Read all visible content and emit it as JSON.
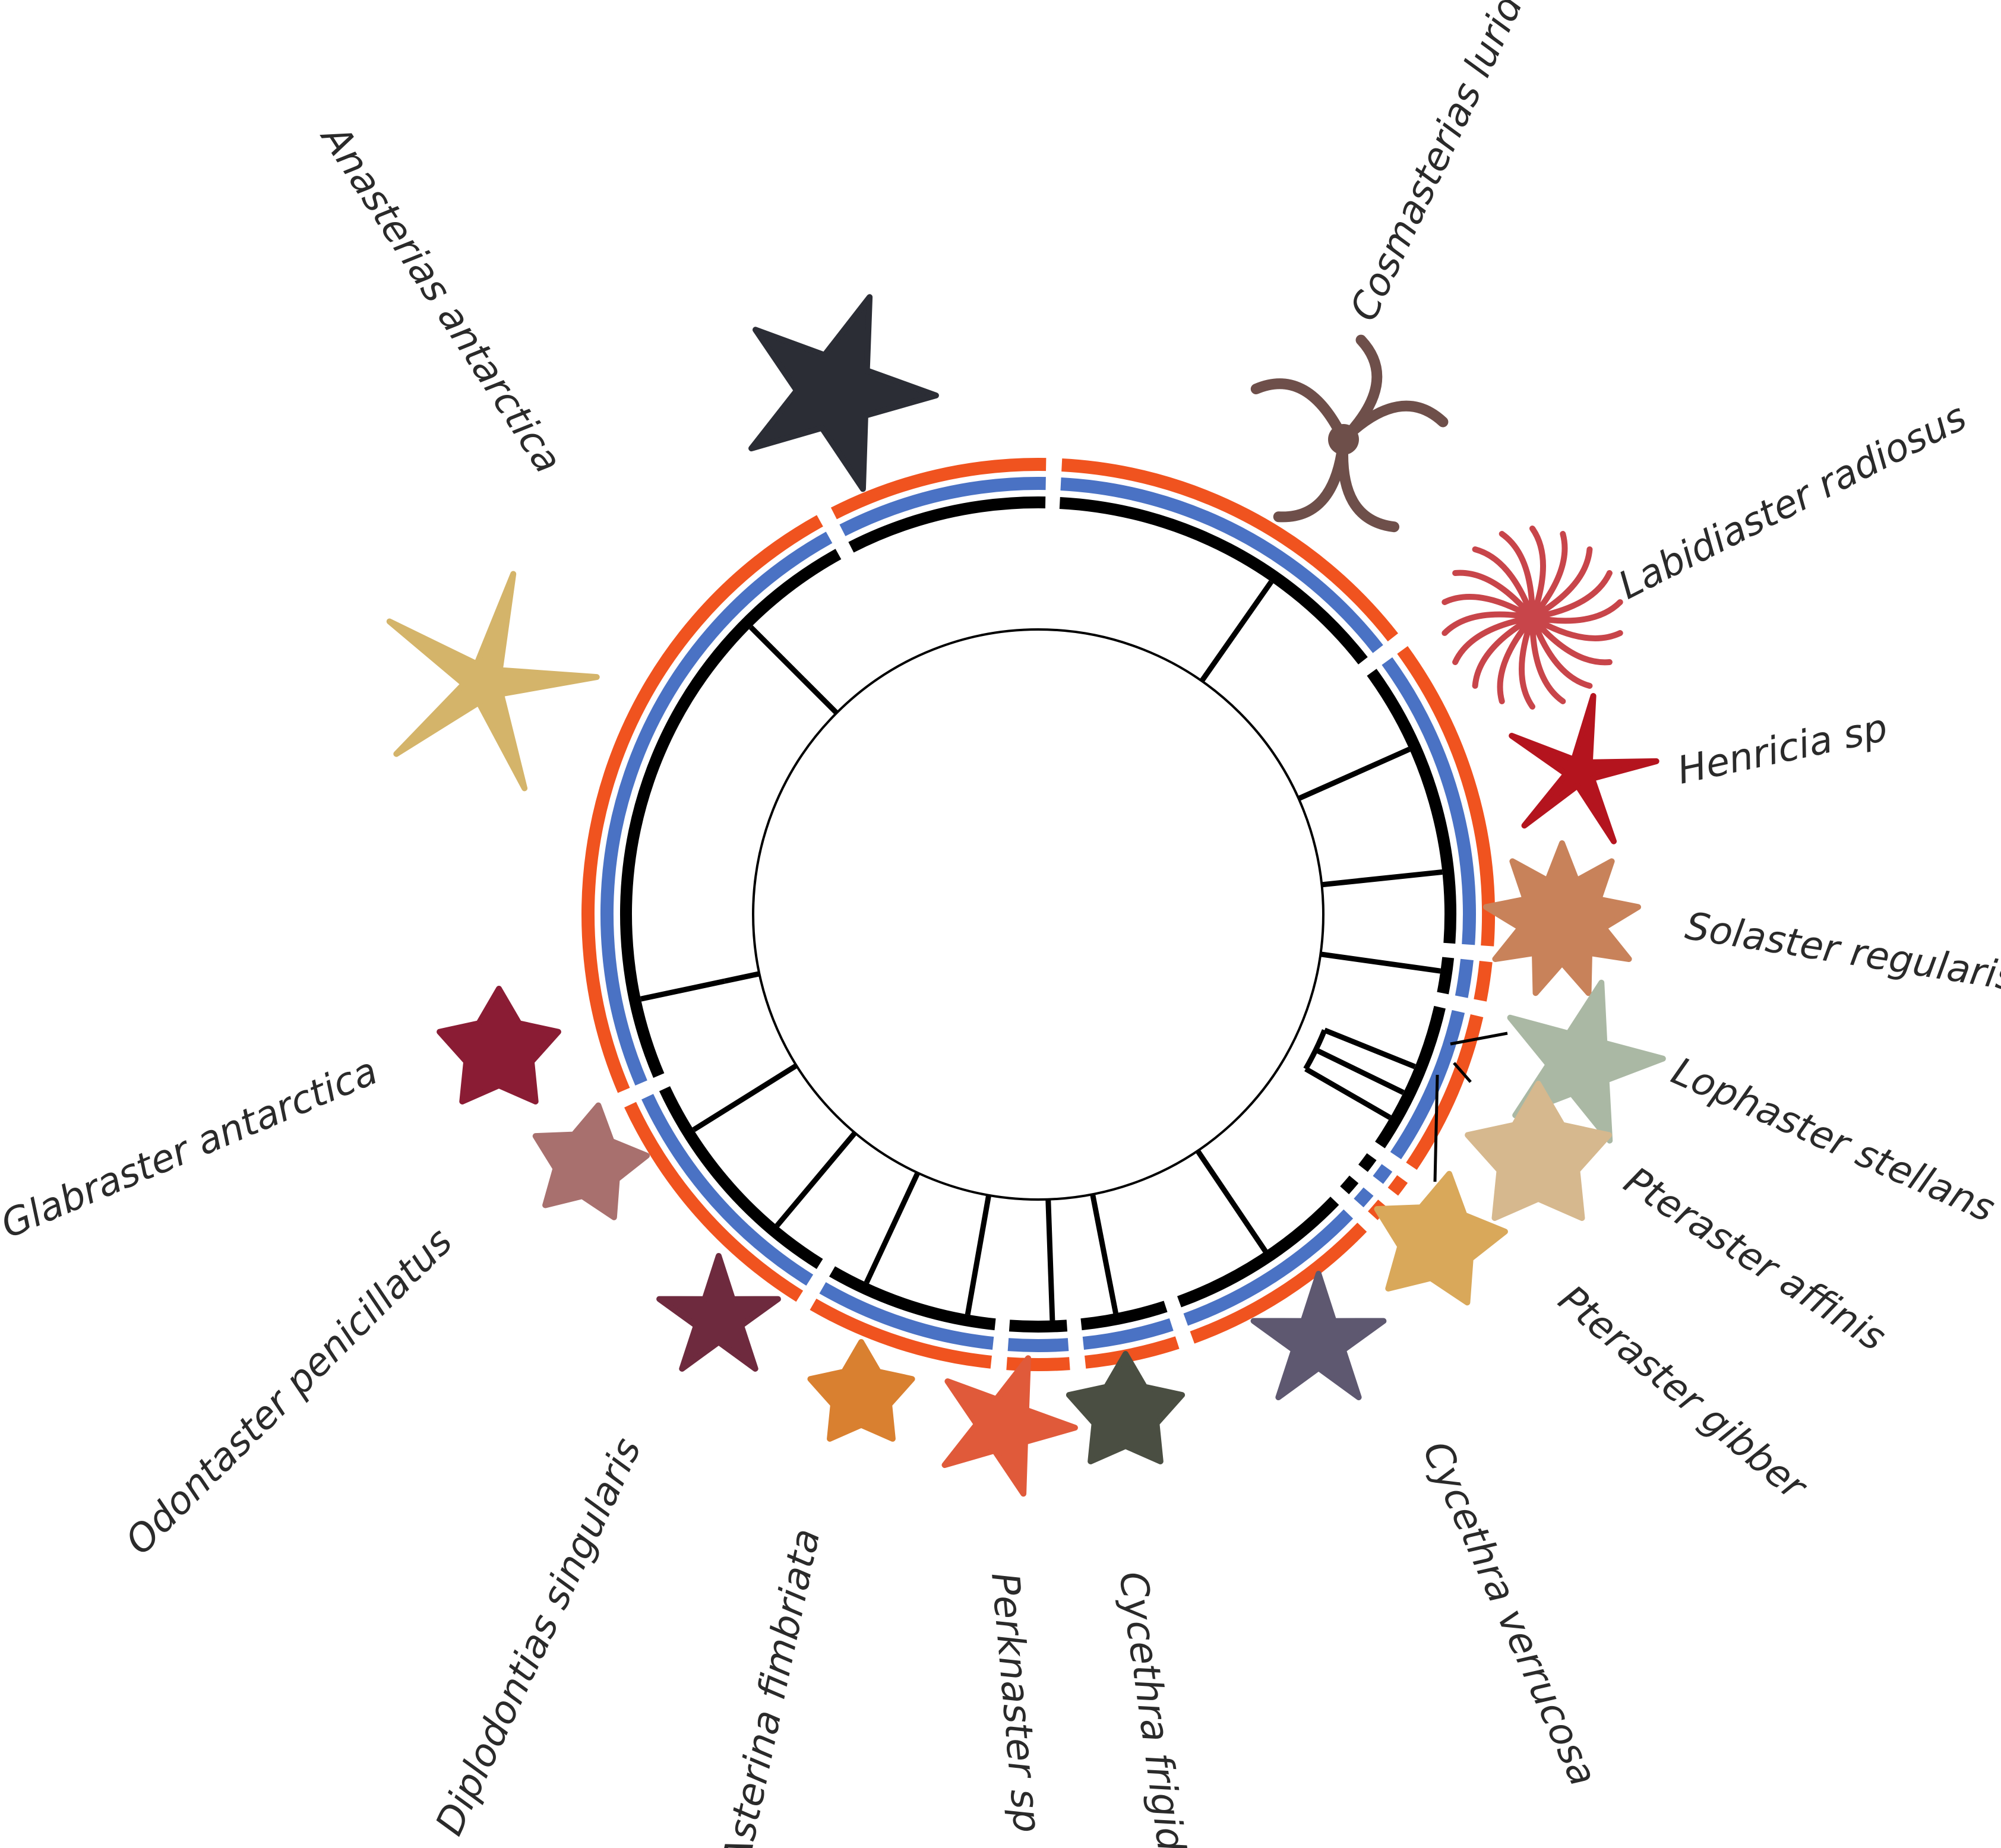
{
  "colors": {
    "orange_ring": "#f0531f",
    "blue_ring": "#4a72c4",
    "black_ring": "#000000",
    "label_text": "#2a2a2a"
  },
  "species": [
    {
      "id": "anasterias",
      "label": "Anasterias antarctica",
      "icon": "dark-grey-starfish-icon",
      "color": "#2b2d35",
      "shape": "star5"
    },
    {
      "id": "cosmasterias",
      "label": "Cosmasterias lurida",
      "icon": "brown-curled-starfish-icon",
      "color": "#6e4f4a",
      "shape": "curl"
    },
    {
      "id": "labidiaster",
      "label": "Labidiaster radiosus",
      "icon": "red-many-armed-starfish-icon",
      "color": "#c8454a",
      "shape": "radiant"
    },
    {
      "id": "henricia",
      "label": "Henricia sp",
      "icon": "red-slender-starfish-icon",
      "color": "#b4141e",
      "shape": "star5thin"
    },
    {
      "id": "solaster",
      "label": "Solaster regularis",
      "icon": "orange-sun-starfish-icon",
      "color": "#c8825a",
      "shape": "star9"
    },
    {
      "id": "lophaster",
      "label": "Lophaster stellans",
      "icon": "pale-green-starfish-icon",
      "color": "#aab8a4",
      "shape": "star5"
    },
    {
      "id": "pteraster_affinis",
      "label": "Pteraster affinis",
      "icon": "tan-cushion-starfish-icon",
      "color": "#d6b88e",
      "shape": "star5fat"
    },
    {
      "id": "pteraster_gibber",
      "label": "Pteraster gibber",
      "icon": "yellow-cushion-starfish-icon",
      "color": "#d9a85a",
      "shape": "star5fat"
    },
    {
      "id": "cycethra_verrucosa",
      "label": "Cycethra verrucosa",
      "icon": "grey-purple-starfish-icon",
      "color": "#5e5870",
      "shape": "star5"
    },
    {
      "id": "cycethra_frigida",
      "label": "Cycethra frigida",
      "icon": "olive-cushion-starfish-icon",
      "color": "#4a4e42",
      "shape": "star5fat"
    },
    {
      "id": "perknaster",
      "label": "Perknaster sp",
      "icon": "orange-red-starfish-icon",
      "color": "#e05a3a",
      "shape": "star5"
    },
    {
      "id": "asterina",
      "label": "Asterina fimbriata",
      "icon": "orange-pentagon-starfish-icon",
      "color": "#d98030",
      "shape": "star5fat"
    },
    {
      "id": "diplodontias",
      "label": "Diplodontias singularis",
      "icon": "maroon-starfish-icon",
      "color": "#6e2a3e",
      "shape": "star5"
    },
    {
      "id": "odontaster",
      "label": "Odontaster penicillatus",
      "icon": "pink-starfish-icon",
      "color": "#a8706e",
      "shape": "star5fat"
    },
    {
      "id": "glabraster",
      "label": "Glabraster antarctica",
      "icon": "crimson-starfish-icon",
      "color": "#8a1c34",
      "shape": "star5fat"
    },
    {
      "id": "yellow_unlabeled",
      "label": "",
      "icon": "yellow-starfish-icon",
      "color": "#d4b46a",
      "shape": "star5thin"
    }
  ]
}
